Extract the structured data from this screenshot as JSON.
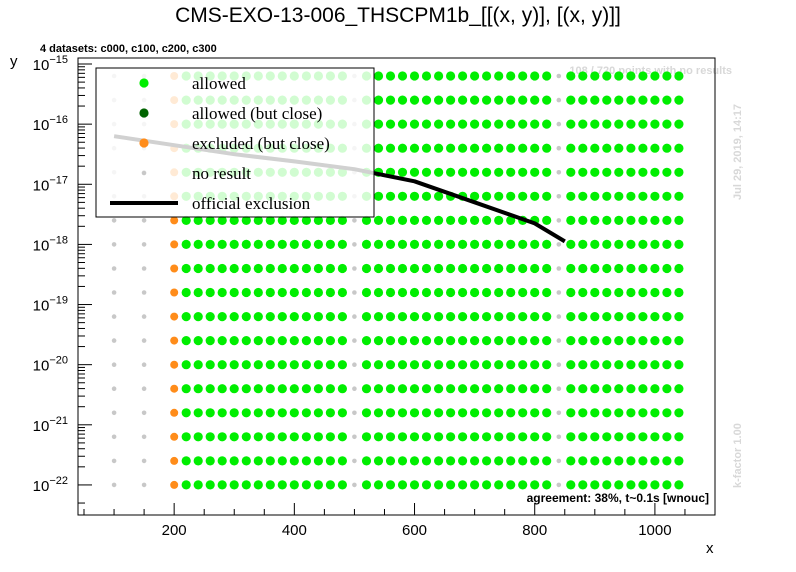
{
  "chart_data": {
    "type": "scatter",
    "title": "CMS-EXO-13-006_THSCPM1b_[[(x, y)], [(x, y)]]",
    "subtitle": "4 datasets: c000, c100, c200, c300",
    "xlabel": "x",
    "ylabel": "y",
    "xlim": [
      40,
      1100
    ],
    "ylim_exponent": [
      -22.5,
      -14.9
    ],
    "y_scale": "log",
    "x_ticks": [
      200,
      400,
      600,
      800,
      1000
    ],
    "y_tick_labels": [
      {
        "base": "10",
        "exp": "−15",
        "value_exp": -15
      },
      {
        "base": "10",
        "exp": "−16",
        "value_exp": -16
      },
      {
        "base": "10",
        "exp": "−17",
        "value_exp": -17
      },
      {
        "base": "10",
        "exp": "−18",
        "value_exp": -18
      },
      {
        "base": "10",
        "exp": "−19",
        "value_exp": -19
      },
      {
        "base": "10",
        "exp": "−20",
        "value_exp": -20
      },
      {
        "base": "10",
        "exp": "−21",
        "value_exp": -21
      },
      {
        "base": "10",
        "exp": "−22",
        "value_exp": -22
      }
    ],
    "grid_x": [
      100,
      150,
      200,
      220,
      240,
      260,
      280,
      300,
      320,
      340,
      360,
      380,
      400,
      420,
      440,
      460,
      480,
      500,
      520,
      540,
      560,
      580,
      600,
      620,
      640,
      660,
      680,
      700,
      720,
      740,
      760,
      780,
      800,
      820,
      840,
      860,
      880,
      900,
      920,
      940,
      960,
      980,
      1000,
      1020,
      1040
    ],
    "grid_y_exp": [
      -22,
      -21.6,
      -21.2,
      -20.8,
      -20.4,
      -20,
      -19.6,
      -19.2,
      -18.8,
      -18.4,
      -18,
      -17.6,
      -17.2,
      -16.8,
      -16.4,
      -16,
      -15.6,
      -15.2
    ],
    "official_exclusion": {
      "x": [
        100,
        200,
        300,
        400,
        500,
        600,
        700,
        800,
        850
      ],
      "y_exp": [
        -16.2,
        -16.35,
        -16.5,
        -16.62,
        -16.75,
        -16.95,
        -17.3,
        -17.65,
        -17.95
      ]
    },
    "legend": {
      "placement": "top-left",
      "entries": [
        {
          "label": "allowed",
          "color": "#00ee00",
          "kind": "dot"
        },
        {
          "label": "allowed (but close)",
          "color": "#006400",
          "kind": "dot"
        },
        {
          "label": "excluded (but close)",
          "color": "#ff8c1a",
          "kind": "dot"
        },
        {
          "label": "no result",
          "color": "#c8c8c8",
          "kind": "small-dot"
        },
        {
          "label": "official exclusion",
          "color": "#000000",
          "kind": "line"
        }
      ]
    },
    "annotations": {
      "missing": "108 / 720 points with no results",
      "agreement": "agreement: 38%, t~0.1s [wnouc]",
      "date": "Jul 29, 2019, 14:17",
      "kfactor": "k-factor 1.00"
    },
    "colors": {
      "allowed": "#00ee00",
      "allowed_close": "#006400",
      "excluded_close": "#ff8c1a",
      "no_result": "#c8c8c8",
      "exclusion": "#000000"
    }
  }
}
